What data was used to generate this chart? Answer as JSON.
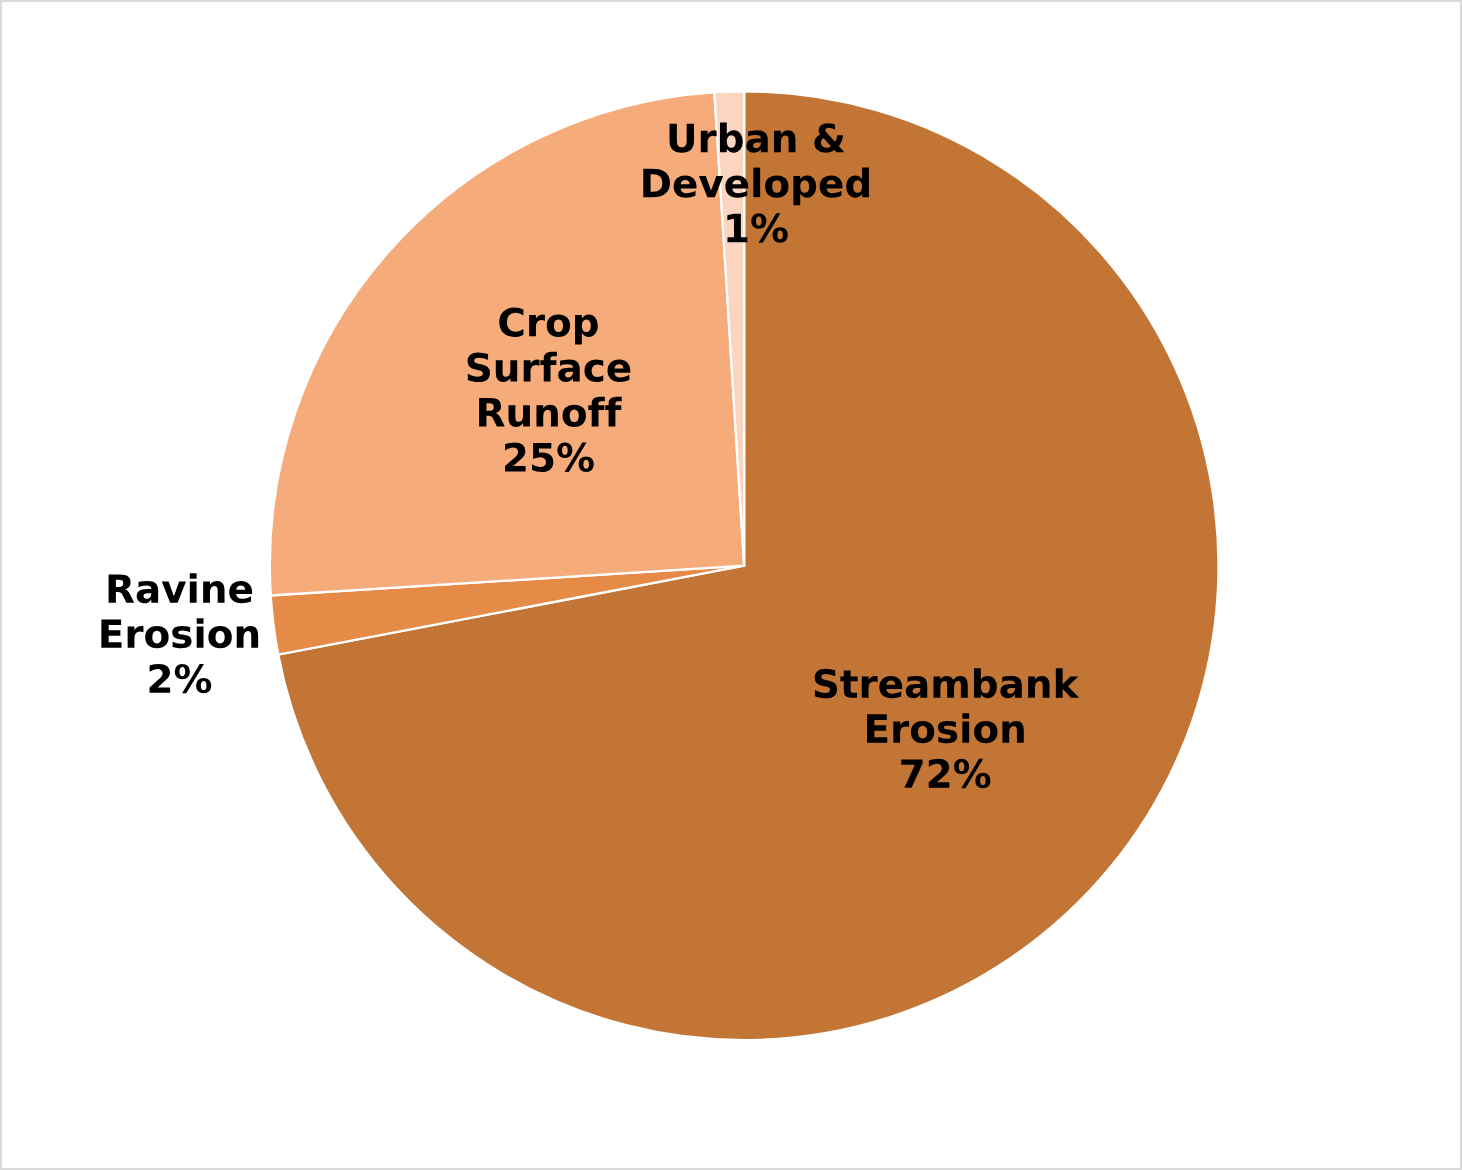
{
  "chart_data": {
    "type": "pie",
    "categories": [
      "Streambank\nErosion",
      "Ravine\nErosion",
      "Crop\nSurface\nRunoff",
      "Urban &\nDeveloped"
    ],
    "values": [
      72,
      2,
      25,
      1
    ],
    "value_labels": [
      "72%",
      "2%",
      "25%",
      "1%"
    ],
    "colors": [
      "#c27535",
      "#e58a47",
      "#f6ab7a",
      "#fbd5bf"
    ],
    "legend": false
  }
}
